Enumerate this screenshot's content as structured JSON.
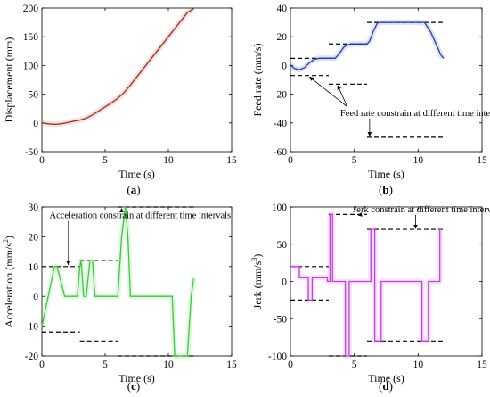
{
  "chart_data": [
    {
      "id": "a",
      "type": "line",
      "panel_label": [
        "(",
        "a",
        ")"
      ],
      "xlabel": "Time (s)",
      "ylabel": "Displacement (mm)",
      "xlim": [
        0,
        15
      ],
      "ylim": [
        -50,
        200
      ],
      "xticks": [
        0,
        5,
        10,
        15
      ],
      "yticks": [
        -50,
        0,
        50,
        100,
        150,
        200
      ],
      "series": [
        {
          "color": "#a0301c",
          "style": "solid",
          "points": [
            [
              0,
              0
            ],
            [
              0.5,
              -1.5
            ],
            [
              1,
              -2.5
            ],
            [
              1.5,
              -1.5
            ],
            [
              2,
              0.5
            ],
            [
              2.5,
              3
            ],
            [
              3,
              5
            ],
            [
              3.5,
              8
            ],
            [
              4,
              14
            ],
            [
              4.5,
              21
            ],
            [
              5,
              28
            ],
            [
              5.5,
              35
            ],
            [
              6,
              43
            ],
            [
              6.5,
              53
            ],
            [
              7,
              66
            ],
            [
              7.5,
              80
            ],
            [
              8,
              94
            ],
            [
              8.5,
              108
            ],
            [
              9,
              122
            ],
            [
              9.5,
              136
            ],
            [
              10,
              150
            ],
            [
              10.5,
              164
            ],
            [
              11,
              178
            ],
            [
              11.5,
              192
            ],
            [
              12,
              199
            ]
          ]
        }
      ],
      "annotations": []
    },
    {
      "id": "b",
      "type": "line",
      "panel_label": [
        "(",
        "b",
        ")"
      ],
      "xlabel": "Time (s)",
      "ylabel": "Feed rate (mm/s)",
      "xlim": [
        0,
        15
      ],
      "ylim": [
        -60,
        40
      ],
      "xticks": [
        0,
        5,
        10,
        15
      ],
      "yticks": [
        -60,
        -40,
        -20,
        0,
        20,
        40
      ],
      "series": [
        {
          "color": "#1f3fb0",
          "style": "solid",
          "points": [
            [
              0,
              0.5
            ],
            [
              0.3,
              -2
            ],
            [
              0.7,
              -3
            ],
            [
              1.1,
              -1.5
            ],
            [
              1.5,
              2
            ],
            [
              1.9,
              4.5
            ],
            [
              2.3,
              5
            ],
            [
              3,
              5
            ],
            [
              3.5,
              5
            ],
            [
              3.8,
              8
            ],
            [
              4.2,
              13
            ],
            [
              4.6,
              14.8
            ],
            [
              5,
              15
            ],
            [
              6,
              15
            ],
            [
              6.2,
              17
            ],
            [
              6.5,
              24
            ],
            [
              6.8,
              29.5
            ],
            [
              7,
              30
            ],
            [
              10,
              30
            ],
            [
              10.5,
              30
            ],
            [
              11,
              23
            ],
            [
              11.5,
              13
            ],
            [
              11.8,
              7
            ],
            [
              12,
              5
            ]
          ]
        }
      ],
      "limits": [
        {
          "x": [
            0,
            3
          ],
          "y": 5
        },
        {
          "x": [
            0,
            3
          ],
          "y": -7
        },
        {
          "x": [
            3,
            6
          ],
          "y": 15
        },
        {
          "x": [
            3,
            6
          ],
          "y": -13
        },
        {
          "x": [
            6,
            12
          ],
          "y": 30
        },
        {
          "x": [
            6,
            12
          ],
          "y": -50
        }
      ],
      "annotations": [
        {
          "text": "Feed rate constrain at different time intervals",
          "x": 3.9,
          "y": -35,
          "arrows": [
            [
              1.5,
              -8
            ],
            [
              3.7,
              -14
            ],
            [
              6.2,
              -49
            ]
          ]
        }
      ]
    },
    {
      "id": "c",
      "type": "line",
      "panel_label": [
        "(",
        "c",
        ")"
      ],
      "xlabel": "Time (s)",
      "ylabel": [
        "Acceleration (mm/s",
        "2",
        ")"
      ],
      "xlim": [
        0,
        15
      ],
      "ylim": [
        -20,
        30
      ],
      "xticks": [
        0,
        5,
        10,
        15
      ],
      "yticks": [
        -20,
        -10,
        0,
        10,
        20,
        30
      ],
      "series": [
        {
          "color": "#3cc83c",
          "style": "solid",
          "points": [
            [
              0,
              -10
            ],
            [
              0.5,
              0
            ],
            [
              1,
              10
            ],
            [
              1.2,
              10
            ],
            [
              1.5,
              5
            ],
            [
              1.8,
              0
            ],
            [
              2.5,
              0
            ],
            [
              2.8,
              0
            ],
            [
              3,
              10
            ],
            [
              3.1,
              12
            ],
            [
              3.3,
              0
            ],
            [
              3.5,
              0
            ],
            [
              3.8,
              12
            ],
            [
              4,
              12
            ],
            [
              4.2,
              0
            ],
            [
              5,
              0
            ],
            [
              6,
              0
            ],
            [
              6.3,
              20
            ],
            [
              6.6,
              30
            ],
            [
              6.8,
              20
            ],
            [
              7,
              0
            ],
            [
              10.3,
              0
            ],
            [
              10.5,
              -20
            ],
            [
              11.5,
              -20
            ],
            [
              11.8,
              0
            ],
            [
              12,
              6
            ]
          ]
        }
      ],
      "limits": [
        {
          "x": [
            0,
            3
          ],
          "y": 10
        },
        {
          "x": [
            0,
            3
          ],
          "y": -12
        },
        {
          "x": [
            3,
            6
          ],
          "y": 12
        },
        {
          "x": [
            3,
            6
          ],
          "y": -15
        },
        {
          "x": [
            6,
            12
          ],
          "y": 30
        },
        {
          "x": [
            6,
            12
          ],
          "y": -20
        }
      ],
      "annotations": [
        {
          "text": "Acceleration  constrain at different time intervals",
          "x": 0.6,
          "y": 26.3,
          "arrows": [
            [
              2.1,
              10.5
            ],
            [
              6.3,
              29.5
            ]
          ]
        }
      ]
    },
    {
      "id": "d",
      "type": "line",
      "panel_label": [
        "(",
        "d",
        ")"
      ],
      "xlabel": "Time (s)",
      "ylabel": [
        "Jerk (mm/s",
        "3",
        ")"
      ],
      "xlim": [
        0,
        15
      ],
      "ylim": [
        -100,
        100
      ],
      "xticks": [
        0,
        5,
        10,
        15
      ],
      "yticks": [
        -100,
        -50,
        0,
        50,
        100
      ],
      "series": [
        {
          "color": "#c040e0",
          "style": "solid",
          "points": [
            [
              0,
              20
            ],
            [
              0.7,
              20
            ],
            [
              0.7,
              5
            ],
            [
              1.4,
              5
            ],
            [
              1.4,
              -25
            ],
            [
              1.7,
              -25
            ],
            [
              1.7,
              5
            ],
            [
              2.9,
              5
            ],
            [
              2.9,
              0
            ],
            [
              3.1,
              0
            ],
            [
              3.1,
              90
            ],
            [
              3.3,
              90
            ],
            [
              3.3,
              0
            ],
            [
              4.3,
              0
            ],
            [
              4.3,
              -100
            ],
            [
              4.6,
              -100
            ],
            [
              4.6,
              0
            ],
            [
              6.3,
              0
            ],
            [
              6.3,
              70
            ],
            [
              6.6,
              70
            ],
            [
              6.6,
              -80
            ],
            [
              7.1,
              -80
            ],
            [
              7.1,
              0
            ],
            [
              10.3,
              0
            ],
            [
              10.3,
              -80
            ],
            [
              10.8,
              -80
            ],
            [
              10.8,
              0
            ],
            [
              11.7,
              0
            ],
            [
              11.7,
              70
            ],
            [
              11.8,
              70
            ]
          ]
        }
      ],
      "limits": [
        {
          "x": [
            0,
            3
          ],
          "y": 20
        },
        {
          "x": [
            0,
            3
          ],
          "y": -25
        },
        {
          "x": [
            3,
            6
          ],
          "y": 90
        },
        {
          "x": [
            3,
            6
          ],
          "y": -100
        },
        {
          "x": [
            6,
            12
          ],
          "y": 70
        },
        {
          "x": [
            6,
            12
          ],
          "y": -80
        }
      ],
      "annotations": [
        {
          "text": "Jerk constrain at different time intervals",
          "x": 4.9,
          "y": 93,
          "arrows": [
            [
              5.3,
              89
            ],
            [
              9.8,
              71
            ]
          ]
        }
      ]
    }
  ]
}
